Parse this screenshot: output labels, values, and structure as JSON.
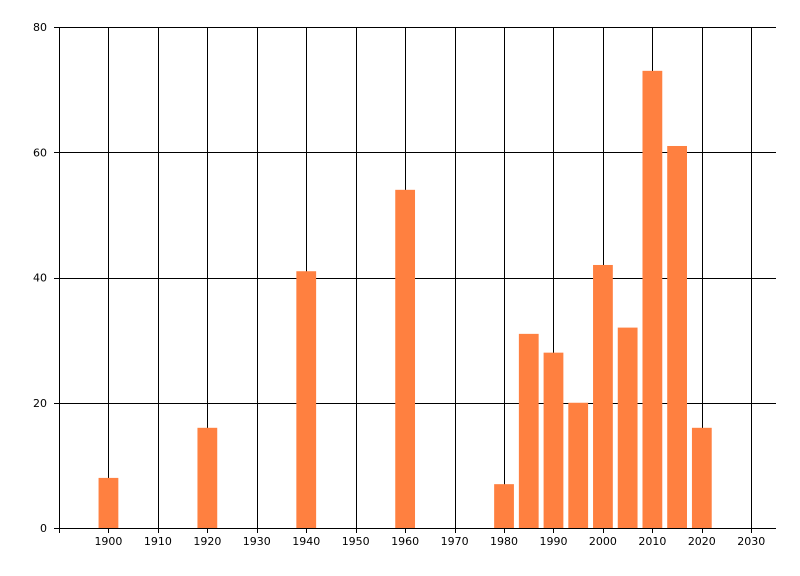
{
  "chart_data": {
    "type": "bar",
    "title": "",
    "xlabel": "",
    "ylabel": "",
    "xlim": [
      1890,
      2035
    ],
    "ylim": [
      0,
      80
    ],
    "x_ticks": [
      1900,
      1910,
      1920,
      1930,
      1940,
      1950,
      1960,
      1970,
      1980,
      1990,
      2000,
      2010,
      2020,
      2030
    ],
    "y_ticks": [
      0,
      20,
      40,
      60,
      80
    ],
    "grid": true,
    "bar_width": 4,
    "color": "#ff8040",
    "x": [
      1900,
      1920,
      1940,
      1960,
      1980,
      1985,
      1990,
      1995,
      2000,
      2005,
      2010,
      2015,
      2020
    ],
    "values": [
      8,
      16,
      41,
      54,
      7,
      31,
      28,
      20,
      42,
      32,
      73,
      61,
      16
    ]
  }
}
